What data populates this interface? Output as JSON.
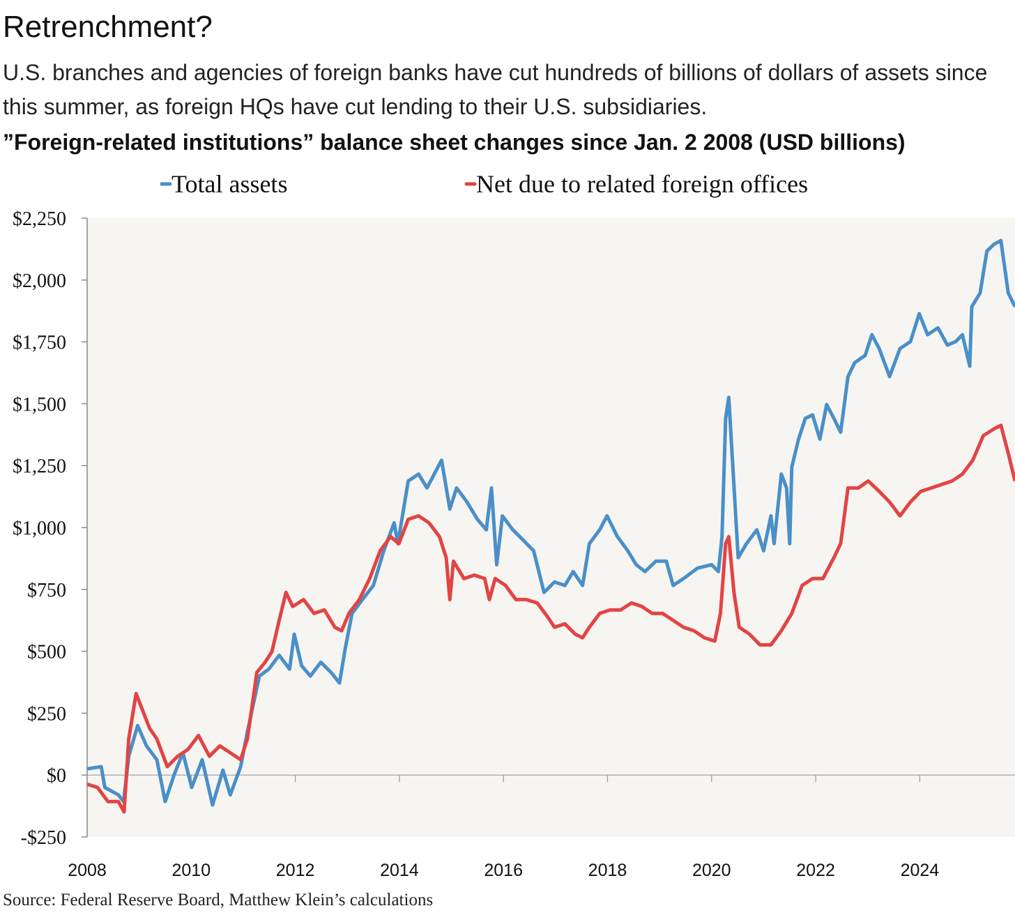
{
  "title": "Retrenchment?",
  "subtitle": "U.S. branches and agencies of foreign banks have cut hundreds of billions of dollars of assets since this summer, as foreign HQs have cut lending to their U.S. subsidiaries.",
  "source": "Source: Federal Reserve Board, Matthew Klein’s calculations",
  "chart_data": {
    "type": "line",
    "title": "”Foreign-related institutions” balance sheet changes since Jan. 2 2008 (USD billions)",
    "xlabel": "",
    "ylabel": "",
    "xlim": [
      2008,
      2025.83
    ],
    "ylim": [
      -250,
      2250
    ],
    "grid": false,
    "legend_position": "top",
    "background": "#f7f5f1",
    "x_ticks": [
      2008,
      2010,
      2012,
      2014,
      2016,
      2018,
      2020,
      2022,
      2024
    ],
    "x_tick_labels": [
      "2008",
      "2010",
      "2012",
      "2014",
      "2016",
      "2018",
      "2020",
      "2022",
      "2024"
    ],
    "y_ticks": [
      -250,
      0,
      250,
      500,
      750,
      1000,
      1250,
      1500,
      1750,
      2000,
      2250
    ],
    "y_tick_labels": [
      "-$250",
      "$0",
      "$250",
      "$500",
      "$750",
      "$1,000",
      "$1,250",
      "$1,500",
      "$1,750",
      "$2,000",
      "$2,250"
    ],
    "series": [
      {
        "name": "Total assets",
        "color": "#4a8fc8",
        "points": [
          [
            2008.0,
            25
          ],
          [
            2008.27,
            34
          ],
          [
            2008.34,
            -50
          ],
          [
            2008.6,
            -80
          ],
          [
            2008.7,
            -107
          ],
          [
            2008.8,
            76
          ],
          [
            2008.97,
            200
          ],
          [
            2009.14,
            118
          ],
          [
            2009.34,
            62
          ],
          [
            2009.5,
            -107
          ],
          [
            2009.68,
            6
          ],
          [
            2009.84,
            90
          ],
          [
            2010.01,
            -50
          ],
          [
            2010.21,
            62
          ],
          [
            2010.41,
            -121
          ],
          [
            2010.61,
            20
          ],
          [
            2010.75,
            -80
          ],
          [
            2010.95,
            34
          ],
          [
            2011.08,
            175
          ],
          [
            2011.31,
            400
          ],
          [
            2011.49,
            428
          ],
          [
            2011.69,
            484
          ],
          [
            2011.89,
            428
          ],
          [
            2011.98,
            569
          ],
          [
            2012.12,
            442
          ],
          [
            2012.29,
            400
          ],
          [
            2012.49,
            456
          ],
          [
            2012.69,
            414
          ],
          [
            2012.85,
            372
          ],
          [
            2012.96,
            512
          ],
          [
            2013.09,
            653
          ],
          [
            2013.29,
            709
          ],
          [
            2013.5,
            766
          ],
          [
            2013.7,
            906
          ],
          [
            2013.9,
            1019
          ],
          [
            2013.97,
            935
          ],
          [
            2014.17,
            1188
          ],
          [
            2014.37,
            1216
          ],
          [
            2014.53,
            1160
          ],
          [
            2014.81,
            1272
          ],
          [
            2014.97,
            1075
          ],
          [
            2015.1,
            1160
          ],
          [
            2015.3,
            1103
          ],
          [
            2015.5,
            1033
          ],
          [
            2015.67,
            991
          ],
          [
            2015.77,
            1160
          ],
          [
            2015.87,
            850
          ],
          [
            2015.98,
            1047
          ],
          [
            2016.18,
            991
          ],
          [
            2016.38,
            949
          ],
          [
            2016.58,
            906
          ],
          [
            2016.78,
            738
          ],
          [
            2016.98,
            780
          ],
          [
            2017.18,
            766
          ],
          [
            2017.34,
            822
          ],
          [
            2017.52,
            766
          ],
          [
            2017.65,
            935
          ],
          [
            2017.85,
            991
          ],
          [
            2017.99,
            1047
          ],
          [
            2018.19,
            963
          ],
          [
            2018.39,
            906
          ],
          [
            2018.55,
            850
          ],
          [
            2018.72,
            822
          ],
          [
            2018.93,
            864
          ],
          [
            2019.13,
            864
          ],
          [
            2019.26,
            766
          ],
          [
            2019.46,
            794
          ],
          [
            2019.73,
            836
          ],
          [
            2020.0,
            850
          ],
          [
            2020.13,
            822
          ],
          [
            2020.2,
            963
          ],
          [
            2020.27,
            1441
          ],
          [
            2020.33,
            1526
          ],
          [
            2020.4,
            1272
          ],
          [
            2020.51,
            878
          ],
          [
            2020.67,
            935
          ],
          [
            2020.87,
            991
          ],
          [
            2021.0,
            906
          ],
          [
            2021.14,
            1047
          ],
          [
            2021.2,
            935
          ],
          [
            2021.34,
            1216
          ],
          [
            2021.44,
            1160
          ],
          [
            2021.5,
            935
          ],
          [
            2021.54,
            1244
          ],
          [
            2021.67,
            1357
          ],
          [
            2021.8,
            1441
          ],
          [
            2021.94,
            1455
          ],
          [
            2022.08,
            1357
          ],
          [
            2022.21,
            1497
          ],
          [
            2022.35,
            1441
          ],
          [
            2022.48,
            1385
          ],
          [
            2022.62,
            1610
          ],
          [
            2022.75,
            1666
          ],
          [
            2022.95,
            1695
          ],
          [
            2023.08,
            1779
          ],
          [
            2023.22,
            1723
          ],
          [
            2023.42,
            1610
          ],
          [
            2023.62,
            1723
          ],
          [
            2023.82,
            1751
          ],
          [
            2023.99,
            1864
          ],
          [
            2024.15,
            1779
          ],
          [
            2024.35,
            1807
          ],
          [
            2024.53,
            1737
          ],
          [
            2024.69,
            1751
          ],
          [
            2024.82,
            1779
          ],
          [
            2024.96,
            1652
          ],
          [
            2025.0,
            1892
          ],
          [
            2025.16,
            1948
          ],
          [
            2025.29,
            2117
          ],
          [
            2025.43,
            2145
          ],
          [
            2025.56,
            2159
          ],
          [
            2025.7,
            1948
          ],
          [
            2025.83,
            1892
          ]
        ]
      },
      {
        "name": "Net due to related foreign offices",
        "color": "#e24444",
        "points": [
          [
            2008.0,
            -37
          ],
          [
            2008.2,
            -50
          ],
          [
            2008.4,
            -107
          ],
          [
            2008.6,
            -107
          ],
          [
            2008.71,
            -149
          ],
          [
            2008.8,
            146
          ],
          [
            2008.94,
            329
          ],
          [
            2009.07,
            259
          ],
          [
            2009.2,
            189
          ],
          [
            2009.34,
            146
          ],
          [
            2009.54,
            34
          ],
          [
            2009.74,
            76
          ],
          [
            2009.94,
            104
          ],
          [
            2010.14,
            160
          ],
          [
            2010.35,
            76
          ],
          [
            2010.55,
            118
          ],
          [
            2010.75,
            90
          ],
          [
            2010.95,
            62
          ],
          [
            2011.08,
            146
          ],
          [
            2011.26,
            414
          ],
          [
            2011.42,
            456
          ],
          [
            2011.55,
            498
          ],
          [
            2011.69,
            625
          ],
          [
            2011.82,
            738
          ],
          [
            2011.95,
            681
          ],
          [
            2012.16,
            709
          ],
          [
            2012.36,
            653
          ],
          [
            2012.56,
            667
          ],
          [
            2012.76,
            597
          ],
          [
            2012.89,
            583
          ],
          [
            2013.03,
            653
          ],
          [
            2013.23,
            709
          ],
          [
            2013.43,
            794
          ],
          [
            2013.63,
            906
          ],
          [
            2013.83,
            963
          ],
          [
            2013.99,
            935
          ],
          [
            2014.17,
            1033
          ],
          [
            2014.37,
            1047
          ],
          [
            2014.57,
            1019
          ],
          [
            2014.77,
            963
          ],
          [
            2014.9,
            878
          ],
          [
            2014.97,
            709
          ],
          [
            2015.04,
            864
          ],
          [
            2015.24,
            794
          ],
          [
            2015.44,
            808
          ],
          [
            2015.64,
            794
          ],
          [
            2015.73,
            709
          ],
          [
            2015.84,
            794
          ],
          [
            2016.04,
            766
          ],
          [
            2016.24,
            709
          ],
          [
            2016.44,
            709
          ],
          [
            2016.65,
            695
          ],
          [
            2016.85,
            639
          ],
          [
            2016.98,
            597
          ],
          [
            2017.18,
            611
          ],
          [
            2017.38,
            569
          ],
          [
            2017.52,
            555
          ],
          [
            2017.65,
            597
          ],
          [
            2017.85,
            653
          ],
          [
            2018.05,
            667
          ],
          [
            2018.25,
            667
          ],
          [
            2018.46,
            695
          ],
          [
            2018.66,
            681
          ],
          [
            2018.86,
            653
          ],
          [
            2019.06,
            653
          ],
          [
            2019.26,
            625
          ],
          [
            2019.46,
            597
          ],
          [
            2019.66,
            583
          ],
          [
            2019.86,
            555
          ],
          [
            2020.06,
            541
          ],
          [
            2020.17,
            653
          ],
          [
            2020.27,
            935
          ],
          [
            2020.33,
            963
          ],
          [
            2020.43,
            738
          ],
          [
            2020.53,
            597
          ],
          [
            2020.73,
            569
          ],
          [
            2020.93,
            526
          ],
          [
            2021.14,
            526
          ],
          [
            2021.34,
            583
          ],
          [
            2021.54,
            653
          ],
          [
            2021.74,
            766
          ],
          [
            2021.94,
            794
          ],
          [
            2022.14,
            794
          ],
          [
            2022.35,
            878
          ],
          [
            2022.48,
            935
          ],
          [
            2022.62,
            1160
          ],
          [
            2022.82,
            1160
          ],
          [
            2023.01,
            1188
          ],
          [
            2023.22,
            1146
          ],
          [
            2023.42,
            1103
          ],
          [
            2023.62,
            1047
          ],
          [
            2023.82,
            1103
          ],
          [
            2024.02,
            1146
          ],
          [
            2024.22,
            1160
          ],
          [
            2024.42,
            1174
          ],
          [
            2024.62,
            1188
          ],
          [
            2024.82,
            1216
          ],
          [
            2025.02,
            1272
          ],
          [
            2025.22,
            1371
          ],
          [
            2025.43,
            1399
          ],
          [
            2025.56,
            1413
          ],
          [
            2025.7,
            1300
          ],
          [
            2025.83,
            1188
          ]
        ]
      }
    ]
  }
}
